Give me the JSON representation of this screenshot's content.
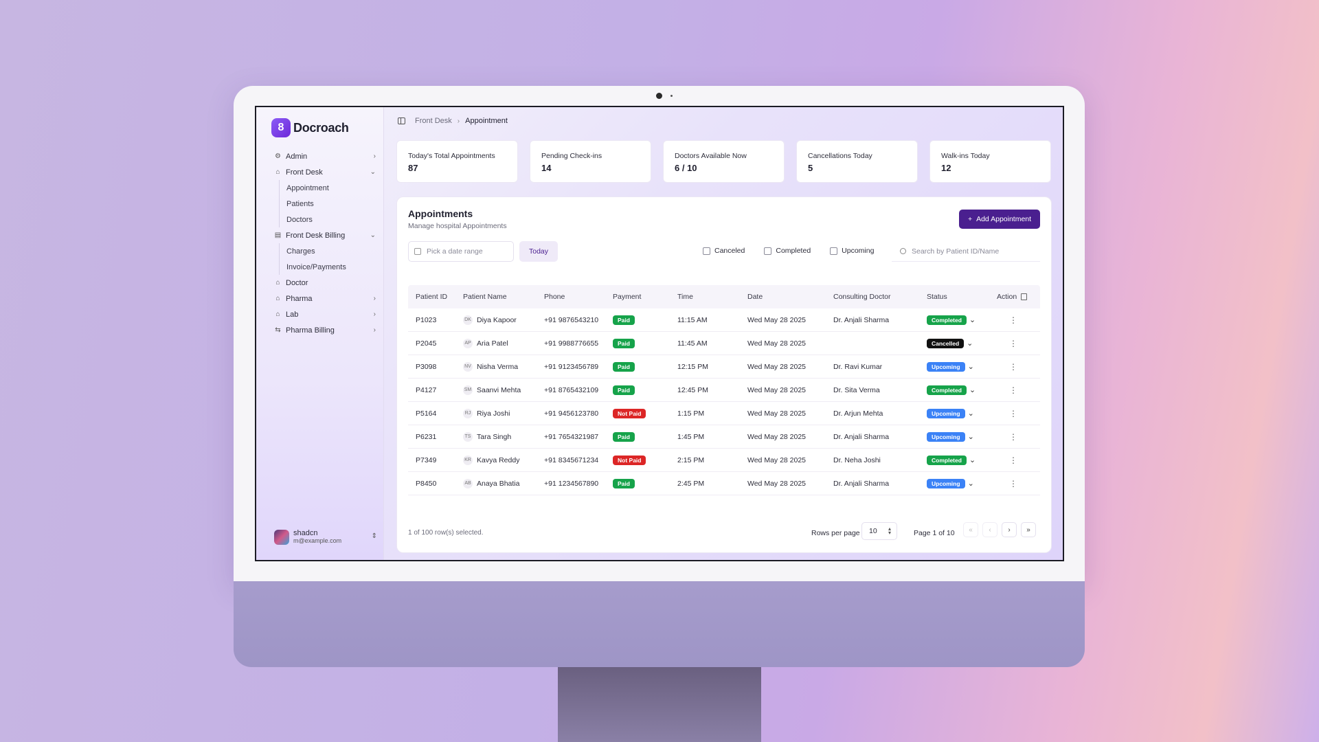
{
  "app": {
    "name": "Docroach",
    "logo_glyph": "8"
  },
  "colors": {
    "accent": "#4a1f8f",
    "paid": "#16a34a",
    "not_paid": "#dc2626",
    "completed": "#16a34a",
    "cancelled": "#111111",
    "upcoming": "#3b82f6"
  },
  "sidebar": {
    "items": [
      {
        "label": "Admin",
        "icon": "gear-icon",
        "chevron": "›"
      },
      {
        "label": "Front Desk",
        "icon": "home-icon",
        "chevron": "⌄"
      },
      {
        "label": "Appointment",
        "sub": true
      },
      {
        "label": "Patients",
        "sub": true
      },
      {
        "label": "Doctors",
        "sub": true
      },
      {
        "label": "Front Desk Billing",
        "icon": "book-icon",
        "chevron": "⌄"
      },
      {
        "label": "Charges",
        "sub": true
      },
      {
        "label": "Invoice/Payments",
        "sub": true
      },
      {
        "label": "Doctor",
        "icon": "home-icon"
      },
      {
        "label": "Pharma",
        "icon": "home-icon",
        "chevron": "›"
      },
      {
        "label": "Lab",
        "icon": "home-icon",
        "chevron": "›"
      },
      {
        "label": "Pharma Billing",
        "icon": "settings-icon",
        "chevron": "›"
      }
    ],
    "user": {
      "name": "shadcn",
      "email": "m@example.com"
    }
  },
  "breadcrumb": {
    "parent": "Front Desk",
    "current": "Appointment"
  },
  "stats": [
    {
      "label": "Today's Total Appointments",
      "value": "87"
    },
    {
      "label": "Pending Check-ins",
      "value": "14"
    },
    {
      "label": "Doctors Available Now",
      "value": "6 / 10"
    },
    {
      "label": "Cancellations Today",
      "value": "5"
    },
    {
      "label": "Walk-ins Today",
      "value": "12"
    }
  ],
  "appointments": {
    "title": "Appointments",
    "subtitle": "Manage hospital Appointments",
    "add_label": "Add Appointment",
    "date_placeholder": "Pick a date range",
    "today_label": "Today",
    "filters": [
      "Canceled",
      "Completed",
      "Upcoming"
    ],
    "search_placeholder": "Search by Patient ID/Name",
    "columns": [
      "Patient ID",
      "Patient Name",
      "Phone",
      "Payment",
      "Time",
      "Date",
      "Consulting Doctor",
      "Status",
      "Action"
    ],
    "rows": [
      {
        "id": "P1023",
        "initials": "DK",
        "name": "Diya Kapoor",
        "phone": "+91 9876543210",
        "payment": "Paid",
        "time": "11:15 AM",
        "date": "Wed May 28 2025",
        "doctor": "Dr. Anjali Sharma",
        "status": "Completed"
      },
      {
        "id": "P2045",
        "initials": "AP",
        "name": "Aria Patel",
        "phone": "+91 9988776655",
        "payment": "Paid",
        "time": "11:45 AM",
        "date": "Wed May 28 2025",
        "doctor": "",
        "status": "Cancelled"
      },
      {
        "id": "P3098",
        "initials": "NV",
        "name": "Nisha Verma",
        "phone": "+91 9123456789",
        "payment": "Paid",
        "time": "12:15 PM",
        "date": "Wed May 28 2025",
        "doctor": "Dr. Ravi Kumar",
        "status": "Upcoming"
      },
      {
        "id": "P4127",
        "initials": "SM",
        "name": "Saanvi Mehta",
        "phone": "+91 8765432109",
        "payment": "Paid",
        "time": "12:45 PM",
        "date": "Wed May 28 2025",
        "doctor": "Dr. Sita Verma",
        "status": "Completed"
      },
      {
        "id": "P5164",
        "initials": "RJ",
        "name": "Riya Joshi",
        "phone": "+91 9456123780",
        "payment": "Not Paid",
        "time": "1:15 PM",
        "date": "Wed May 28 2025",
        "doctor": "Dr. Arjun Mehta",
        "status": "Upcoming"
      },
      {
        "id": "P6231",
        "initials": "TS",
        "name": "Tara Singh",
        "phone": "+91 7654321987",
        "payment": "Paid",
        "time": "1:45 PM",
        "date": "Wed May 28 2025",
        "doctor": "Dr. Anjali Sharma",
        "status": "Upcoming"
      },
      {
        "id": "P7349",
        "initials": "KR",
        "name": "Kavya Reddy",
        "phone": "+91 8345671234",
        "payment": "Not Paid",
        "time": "2:15 PM",
        "date": "Wed May 28 2025",
        "doctor": "Dr. Neha Joshi",
        "status": "Completed"
      },
      {
        "id": "P8450",
        "initials": "AB",
        "name": "Anaya Bhatia",
        "phone": "+91 1234567890",
        "payment": "Paid",
        "time": "2:45 PM",
        "date": "Wed May 28 2025",
        "doctor": "Dr. Anjali Sharma",
        "status": "Upcoming"
      }
    ],
    "selection_text": "1 of 100 row(s) selected.",
    "rows_per_page_label": "Rows per page",
    "rows_per_page": "10",
    "page_info": "Page 1 of 10"
  }
}
